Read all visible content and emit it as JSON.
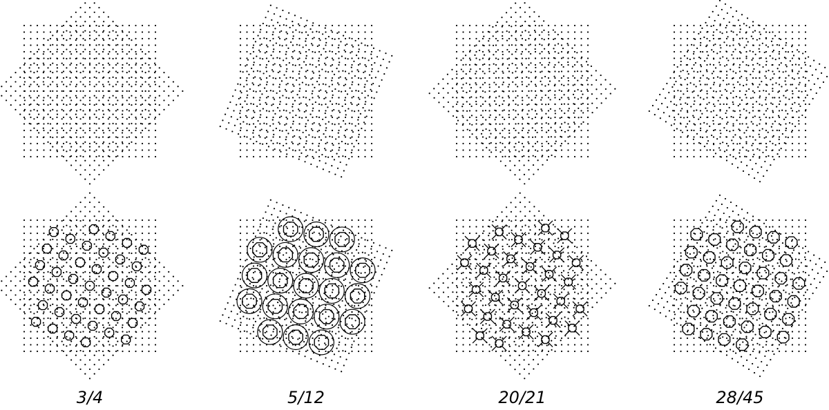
{
  "figure": {
    "description_colors": {
      "dots": "#000000",
      "lines": "#000000",
      "background": "#ffffff"
    },
    "panels": [
      {
        "caption": "3/4"
      },
      {
        "caption": "5/12"
      },
      {
        "caption": "20/21"
      },
      {
        "caption": "28/45"
      }
    ],
    "rows": [
      "overlaid-lattices",
      "highlighted-coincidence-pattern"
    ]
  }
}
